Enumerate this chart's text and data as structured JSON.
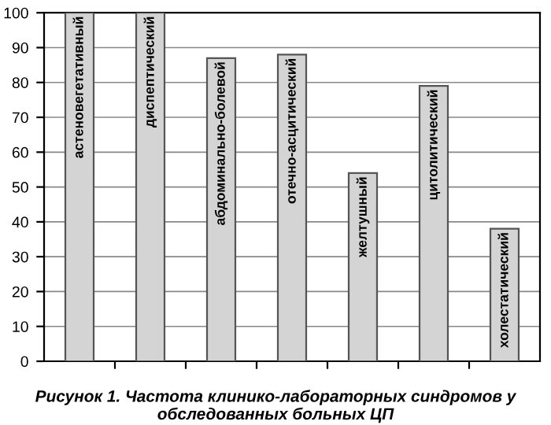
{
  "chart_data": {
    "type": "bar",
    "title": "Рисунок 1. Частота клинико-лабораторных синдромов у обследованных больных ЦП",
    "categories": [
      "астеновегетативный",
      "диспептический",
      "абдоминально-болевой",
      "отечно-асцитический",
      "желтушный",
      "цитолитический",
      "холестатический"
    ],
    "values": [
      100,
      100,
      87,
      88,
      54,
      79,
      38
    ],
    "color": "#d4d4d4",
    "ylim": [
      0,
      100
    ],
    "yticks": [
      0,
      10,
      20,
      30,
      40,
      50,
      60,
      70,
      80,
      90,
      100
    ],
    "grid": "y"
  }
}
